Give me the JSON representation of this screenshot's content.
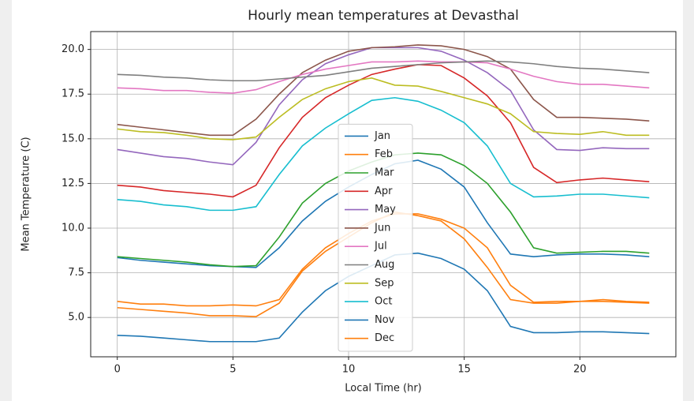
{
  "chart_data": {
    "type": "line",
    "title": "Hourly mean temperatures at Devasthal",
    "x_label": "Local Time (hr)",
    "y_label": "Mean Temperature (C)",
    "x": [
      0,
      1,
      2,
      3,
      4,
      5,
      6,
      7,
      8,
      9,
      10,
      11,
      12,
      13,
      14,
      15,
      16,
      17,
      18,
      19,
      20,
      21,
      22,
      23
    ],
    "xlim": [
      -1.15,
      24.15
    ],
    "xticks": [
      0,
      5,
      10,
      15,
      20
    ],
    "ylim": [
      2.8,
      21.0
    ],
    "yticks": [
      {
        "value": 5,
        "label": "5.0"
      },
      {
        "value": 7.5,
        "label": "7.5"
      },
      {
        "value": 10,
        "label": "10.0"
      },
      {
        "value": 12.5,
        "label": "12.5"
      },
      {
        "value": 15,
        "label": "15.0"
      },
      {
        "value": 17.5,
        "label": "17.5"
      },
      {
        "value": 20,
        "label": "20.0"
      }
    ],
    "grid": true,
    "legend": "lower center",
    "series": [
      {
        "name": "Jan",
        "color": "#1f77b4",
        "values": [
          8.35,
          8.2,
          8.1,
          8.0,
          7.9,
          7.85,
          7.8,
          8.9,
          10.4,
          11.5,
          12.3,
          13.0,
          13.6,
          13.8,
          13.3,
          12.3,
          10.3,
          8.55,
          8.4,
          8.5,
          8.55,
          8.55,
          8.5,
          8.4
        ]
      },
      {
        "name": "Feb",
        "color": "#ff7f0e",
        "values": [
          5.9,
          5.75,
          5.75,
          5.65,
          5.65,
          5.7,
          5.65,
          6.0,
          7.7,
          8.9,
          9.7,
          10.4,
          10.8,
          10.8,
          10.5,
          10.0,
          8.9,
          6.8,
          5.85,
          5.9,
          5.9,
          6.0,
          5.9,
          5.85
        ]
      },
      {
        "name": "Mar",
        "color": "#2ca02c",
        "values": [
          8.4,
          8.3,
          8.2,
          8.1,
          7.95,
          7.85,
          7.9,
          9.5,
          11.4,
          12.5,
          13.2,
          13.7,
          14.1,
          14.2,
          14.1,
          13.5,
          12.5,
          10.9,
          8.9,
          8.6,
          8.65,
          8.7,
          8.7,
          8.6
        ]
      },
      {
        "name": "Apr",
        "color": "#d62728",
        "values": [
          12.4,
          12.3,
          12.1,
          12.0,
          11.9,
          11.75,
          12.4,
          14.5,
          16.2,
          17.3,
          18.0,
          18.6,
          18.9,
          19.15,
          19.1,
          18.4,
          17.4,
          15.9,
          13.4,
          12.55,
          12.7,
          12.8,
          12.7,
          12.6
        ]
      },
      {
        "name": "May",
        "color": "#9467bd",
        "values": [
          14.4,
          14.2,
          14.0,
          13.9,
          13.7,
          13.55,
          14.8,
          16.9,
          18.3,
          19.2,
          19.7,
          20.1,
          20.1,
          20.1,
          19.9,
          19.4,
          18.7,
          17.7,
          15.5,
          14.4,
          14.35,
          14.5,
          14.45,
          14.45
        ]
      },
      {
        "name": "Jun",
        "color": "#8c564b",
        "values": [
          15.8,
          15.65,
          15.5,
          15.35,
          15.2,
          15.2,
          16.1,
          17.5,
          18.7,
          19.4,
          19.9,
          20.1,
          20.15,
          20.25,
          20.2,
          20.0,
          19.6,
          18.9,
          17.2,
          16.2,
          16.2,
          16.15,
          16.1,
          16.0
        ]
      },
      {
        "name": "Jul",
        "color": "#e377c2",
        "values": [
          17.85,
          17.8,
          17.7,
          17.7,
          17.6,
          17.55,
          17.75,
          18.2,
          18.6,
          18.9,
          19.1,
          19.3,
          19.3,
          19.35,
          19.3,
          19.3,
          19.25,
          18.9,
          18.5,
          18.2,
          18.05,
          18.05,
          17.95,
          17.85
        ]
      },
      {
        "name": "Aug",
        "color": "#7f7f7f",
        "values": [
          18.6,
          18.55,
          18.45,
          18.4,
          18.3,
          18.25,
          18.25,
          18.35,
          18.45,
          18.55,
          18.75,
          18.95,
          19.05,
          19.15,
          19.25,
          19.3,
          19.35,
          19.3,
          19.2,
          19.05,
          18.95,
          18.9,
          18.8,
          18.7
        ]
      },
      {
        "name": "Sep",
        "color": "#bcbd22",
        "values": [
          15.55,
          15.4,
          15.35,
          15.2,
          15.0,
          14.95,
          15.1,
          16.2,
          17.2,
          17.8,
          18.2,
          18.4,
          18.0,
          17.95,
          17.65,
          17.3,
          16.95,
          16.4,
          15.4,
          15.3,
          15.25,
          15.4,
          15.2,
          15.2
        ]
      },
      {
        "name": "Oct",
        "color": "#17becf",
        "values": [
          11.6,
          11.5,
          11.3,
          11.2,
          11.0,
          11.0,
          11.2,
          13.0,
          14.6,
          15.6,
          16.4,
          17.15,
          17.3,
          17.1,
          16.6,
          15.9,
          14.6,
          12.5,
          11.75,
          11.8,
          11.9,
          11.9,
          11.8,
          11.7
        ]
      },
      {
        "name": "Nov",
        "color": "#1f77b4",
        "values": [
          4.0,
          3.95,
          3.85,
          3.75,
          3.65,
          3.65,
          3.65,
          3.85,
          5.3,
          6.5,
          7.3,
          7.9,
          8.5,
          8.6,
          8.3,
          7.7,
          6.5,
          4.5,
          4.15,
          4.15,
          4.2,
          4.2,
          4.15,
          4.1
        ]
      },
      {
        "name": "Dec",
        "color": "#ff7f0e",
        "values": [
          5.55,
          5.45,
          5.35,
          5.25,
          5.1,
          5.1,
          5.05,
          5.8,
          7.6,
          8.7,
          9.5,
          10.3,
          10.9,
          10.7,
          10.4,
          9.4,
          7.8,
          6.0,
          5.8,
          5.8,
          5.9,
          5.9,
          5.85,
          5.8
        ]
      }
    ]
  }
}
